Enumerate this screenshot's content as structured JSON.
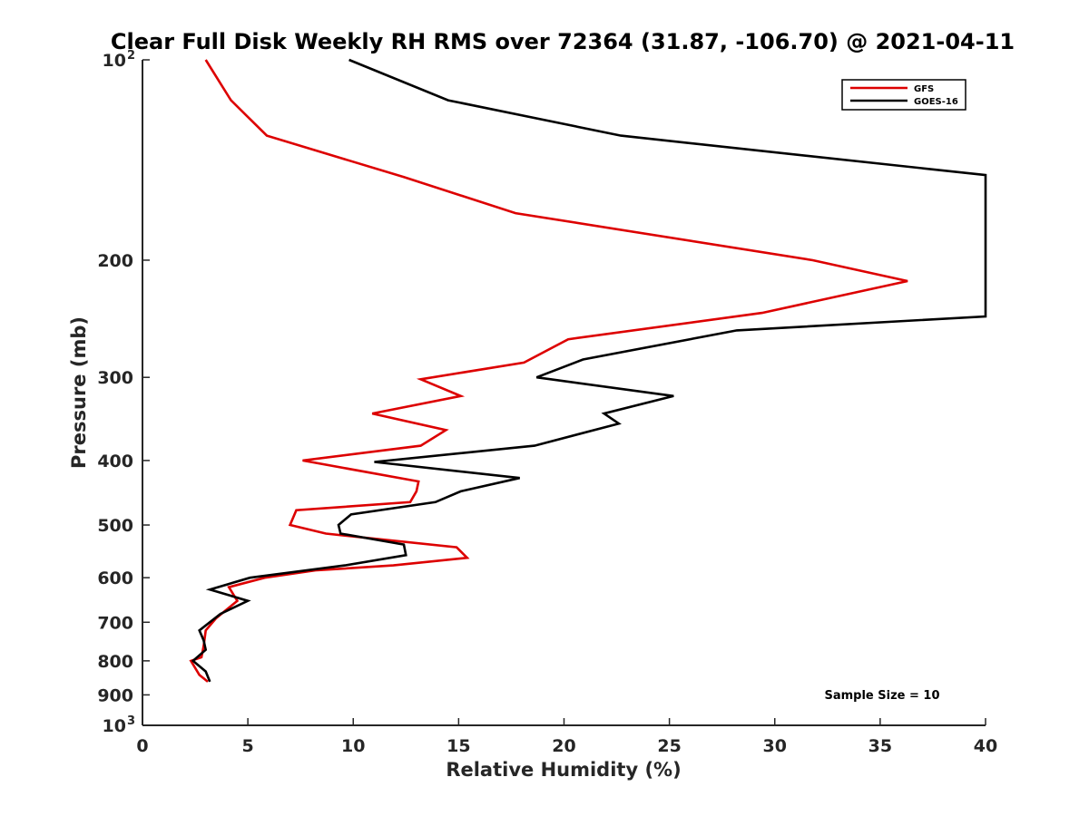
{
  "chart_data": {
    "type": "line",
    "title": "Clear Full Disk Weekly RH RMS over 72364 (31.87, -106.70) @ 2021-04-11",
    "xlabel": "Relative Humidity (%)",
    "ylabel": "Pressure (mb)",
    "xlim": [
      0,
      40
    ],
    "ylim": [
      100,
      1000
    ],
    "y_scale": "log",
    "y_reversed": true,
    "x_ticks": [
      "0",
      "5",
      "10",
      "15",
      "20",
      "25",
      "30",
      "35",
      "40"
    ],
    "y_ticks": [
      {
        "value": 100,
        "label": "10",
        "sup": "2"
      },
      {
        "value": 200,
        "label": "200"
      },
      {
        "value": 300,
        "label": "300"
      },
      {
        "value": 400,
        "label": "400"
      },
      {
        "value": 500,
        "label": "500"
      },
      {
        "value": 600,
        "label": "600"
      },
      {
        "value": 700,
        "label": "700"
      },
      {
        "value": 800,
        "label": "800"
      },
      {
        "value": 900,
        "label": "900"
      },
      {
        "value": 1000,
        "label": "10",
        "sup": "3"
      }
    ],
    "legend": {
      "position": "top-right"
    },
    "annotation": "Sample Size = 10",
    "series": [
      {
        "name": "GFS",
        "color": "#dd0000",
        "points": [
          [
            3.0,
            100
          ],
          [
            4.2,
            115
          ],
          [
            5.9,
            130
          ],
          [
            12.4,
            150
          ],
          [
            17.7,
            170
          ],
          [
            31.8,
            200
          ],
          [
            36.3,
            215
          ],
          [
            29.4,
            240
          ],
          [
            20.2,
            263
          ],
          [
            18.1,
            285
          ],
          [
            13.2,
            302
          ],
          [
            15.1,
            320
          ],
          [
            10.9,
            340
          ],
          [
            14.4,
            360
          ],
          [
            13.2,
            380
          ],
          [
            7.6,
            400
          ],
          [
            13.1,
            430
          ],
          [
            13.0,
            445
          ],
          [
            12.7,
            462
          ],
          [
            7.3,
            475
          ],
          [
            7.0,
            500
          ],
          [
            8.7,
            515
          ],
          [
            14.9,
            540
          ],
          [
            15.4,
            560
          ],
          [
            11.9,
            575
          ],
          [
            8.2,
            585
          ],
          [
            5.8,
            600
          ],
          [
            4.1,
            620
          ],
          [
            4.5,
            650
          ],
          [
            3.5,
            690
          ],
          [
            3.0,
            720
          ],
          [
            2.9,
            760
          ],
          [
            2.8,
            790
          ],
          [
            2.3,
            800
          ],
          [
            2.7,
            840
          ],
          [
            3.1,
            860
          ]
        ]
      },
      {
        "name": "GOES-16",
        "color": "#000000",
        "points": [
          [
            9.8,
            100
          ],
          [
            14.5,
            115
          ],
          [
            22.7,
            130
          ],
          [
            40.0,
            149
          ],
          [
            40.0,
            243
          ],
          [
            28.2,
            255
          ],
          [
            20.9,
            282
          ],
          [
            18.7,
            300
          ],
          [
            25.2,
            320
          ],
          [
            21.9,
            340
          ],
          [
            22.6,
            352
          ],
          [
            18.6,
            380
          ],
          [
            11.0,
            402
          ],
          [
            17.9,
            425
          ],
          [
            15.1,
            445
          ],
          [
            13.9,
            462
          ],
          [
            9.9,
            482
          ],
          [
            9.3,
            500
          ],
          [
            9.4,
            515
          ],
          [
            12.4,
            535
          ],
          [
            12.5,
            555
          ],
          [
            9.6,
            575
          ],
          [
            5.1,
            600
          ],
          [
            3.2,
            625
          ],
          [
            5.0,
            650
          ],
          [
            3.7,
            680
          ],
          [
            2.7,
            720
          ],
          [
            2.9,
            745
          ],
          [
            3.0,
            770
          ],
          [
            2.4,
            800
          ],
          [
            3.0,
            830
          ],
          [
            3.2,
            860
          ]
        ]
      }
    ]
  }
}
